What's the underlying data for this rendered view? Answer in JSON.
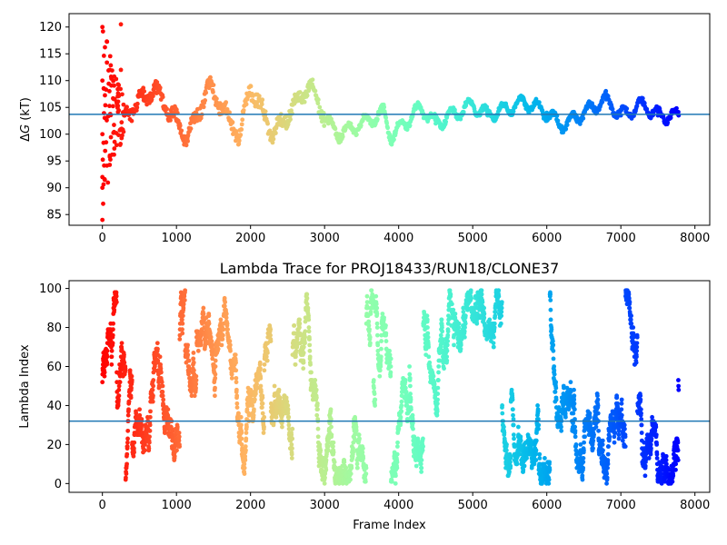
{
  "chart_data": [
    {
      "type": "scatter",
      "title": "",
      "xlabel": "",
      "ylabel_prefix": "Δ",
      "ylabel_var": "G",
      "ylabel_suffix": " (kT)",
      "xlim": [
        -450,
        8200
      ],
      "ylim": [
        83,
        122.5
      ],
      "xticks": [
        0,
        1000,
        2000,
        3000,
        4000,
        5000,
        6000,
        7000,
        8000
      ],
      "yticks": [
        85,
        90,
        95,
        100,
        105,
        110,
        115,
        120
      ],
      "hline": 103.7,
      "hline_color": "#1f77b4",
      "colormap": "rainbow (red at frame 0 to violet at last frame)",
      "points_approx": [
        [
          0,
          120
        ],
        [
          0,
          110
        ],
        [
          0,
          100
        ],
        [
          0,
          92
        ],
        [
          0,
          90
        ],
        [
          0,
          84
        ],
        [
          100,
          112
        ],
        [
          100,
          96
        ],
        [
          250,
          120.5
        ],
        [
          250,
          112
        ],
        [
          300,
          103.5
        ],
        [
          700,
          108.5
        ],
        [
          1000,
          102.5
        ],
        [
          1150,
          99.5
        ],
        [
          1450,
          109
        ],
        [
          1850,
          99.5
        ],
        [
          2000,
          109
        ],
        [
          2300,
          100
        ],
        [
          2800,
          109
        ],
        [
          3050,
          102
        ],
        [
          3200,
          100
        ],
        [
          3800,
          104
        ],
        [
          3900,
          99.5
        ],
        [
          4300,
          105
        ],
        [
          4500,
          102
        ],
        [
          5000,
          105.5
        ],
        [
          5200,
          103.5
        ],
        [
          5700,
          106
        ],
        [
          6000,
          104
        ],
        [
          6200,
          101.5
        ],
        [
          6800,
          106.5
        ],
        [
          7000,
          103.5
        ],
        [
          7300,
          105.5
        ],
        [
          7500,
          103.5
        ],
        [
          7780,
          103.5
        ]
      ]
    },
    {
      "type": "scatter",
      "title": "Lambda Trace for PROJ18433/RUN18/CLONE37",
      "xlabel": "Frame Index",
      "ylabel": "Lambda Index",
      "xlim": [
        -450,
        8200
      ],
      "ylim": [
        -4.5,
        104
      ],
      "xticks": [
        0,
        1000,
        2000,
        3000,
        4000,
        5000,
        6000,
        7000,
        8000
      ],
      "yticks": [
        0,
        20,
        40,
        60,
        80,
        100
      ],
      "hline": 32,
      "hline_color": "#1f77b4",
      "colormap": "rainbow (red at frame 0 to violet at last frame)",
      "frame_range": [
        0,
        7780
      ],
      "lambda_range": [
        0,
        99
      ]
    }
  ]
}
